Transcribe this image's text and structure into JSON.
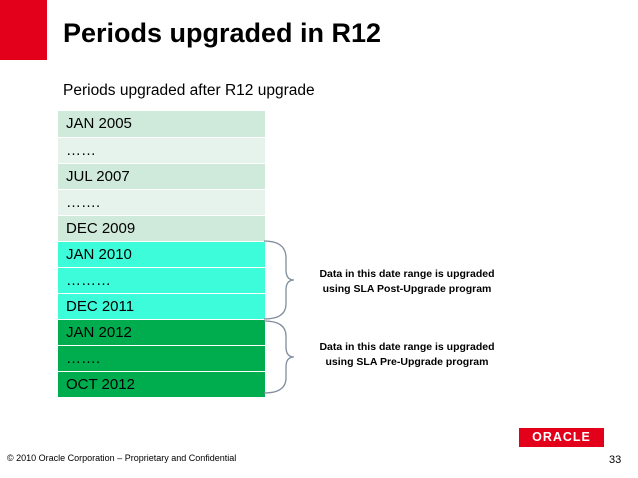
{
  "slide": {
    "title": "Periods upgraded in R12",
    "subtitle": "Periods upgraded after R12 upgrade"
  },
  "periods": [
    {
      "label": "JAN 2005",
      "color": "#cfeadb"
    },
    {
      "label": "……",
      "color": "#e6f3ec"
    },
    {
      "label": "JUL 2007",
      "color": "#cfeadb"
    },
    {
      "label": "…….",
      "color": "#e6f3ec"
    },
    {
      "label": "DEC 2009",
      "color": "#cfeadb"
    },
    {
      "label": "JAN 2010",
      "color": "#3dfcd9"
    },
    {
      "label": "………",
      "color": "#3dfcd9"
    },
    {
      "label": "DEC 2011",
      "color": "#3dfcd9"
    },
    {
      "label": "JAN 2012",
      "color": "#00ad4e"
    },
    {
      "label": "…….",
      "color": "#00ad4e"
    },
    {
      "label": "OCT 2012",
      "color": "#00ad4e"
    }
  ],
  "annotations": {
    "post_upgrade": {
      "line1": "Data in this date range is upgraded",
      "line2": "using SLA Post-Upgrade program"
    },
    "pre_upgrade": {
      "line1": "Data in this date range is upgraded",
      "line2": "using SLA Pre-Upgrade program"
    }
  },
  "footer": {
    "copyright": "© 2010 Oracle Corporation – Proprietary and Confidential",
    "page_number": "33",
    "logo_text": "ORACLE"
  },
  "colors": {
    "accent_red": "#e2001a",
    "brace": "#7f8c9c"
  }
}
